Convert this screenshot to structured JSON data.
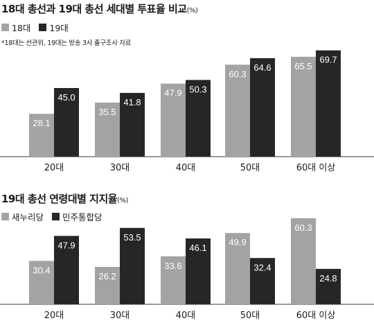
{
  "chart_data": [
    {
      "type": "bar",
      "title": "18대 총선과 19대 총선 세대별 투표율 비교",
      "unit": "(%)",
      "note": "*18대는 선관위, 19대는 방송 3사 출구조사 자료",
      "categories": [
        "20대",
        "30대",
        "40대",
        "50대",
        "60대 이상"
      ],
      "series": [
        {
          "name": "18대",
          "color": "#a3a3a3",
          "values": [
            28.1,
            35.5,
            47.9,
            60.3,
            65.5
          ]
        },
        {
          "name": "19대",
          "color": "#262626",
          "values": [
            45.0,
            41.8,
            50.3,
            64.6,
            69.7
          ]
        }
      ],
      "ylim": [
        0,
        100
      ],
      "grid": false,
      "legend": "top-left"
    },
    {
      "type": "bar",
      "title": "19대 총선 연령대별 지지율",
      "unit": "(%)",
      "categories": [
        "20대",
        "30대",
        "40대",
        "50대",
        "60대 이상"
      ],
      "series": [
        {
          "name": "새누리당",
          "color": "#a3a3a3",
          "values": [
            30.4,
            26.2,
            33.6,
            49.9,
            60.3
          ]
        },
        {
          "name": "민주통합당",
          "color": "#262626",
          "values": [
            47.9,
            53.5,
            46.1,
            32.4,
            24.8
          ]
        }
      ],
      "ylim": [
        0,
        100
      ],
      "grid": false,
      "legend": "top-left"
    }
  ]
}
